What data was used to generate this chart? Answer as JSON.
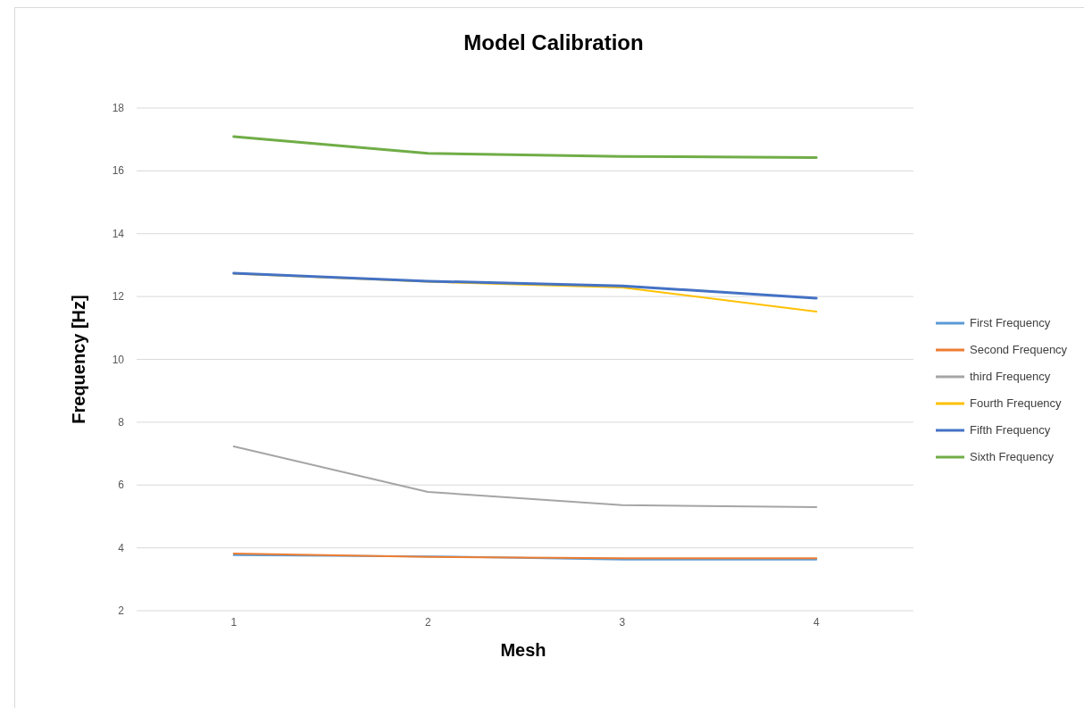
{
  "chart_data": {
    "type": "line",
    "title": "Model Calibration",
    "xlabel": "Mesh",
    "ylabel": "Frequency [Hz]",
    "categories": [
      "1",
      "2",
      "3",
      "4"
    ],
    "series": [
      {
        "name": "First Frequency",
        "color": "#5b9bd5",
        "values": [
          3.77,
          3.73,
          3.63,
          3.63
        ]
      },
      {
        "name": "Second Frequency",
        "color": "#ed7d31",
        "values": [
          3.82,
          3.71,
          3.67,
          3.67
        ]
      },
      {
        "name": "third Frequency",
        "color": "#a5a5a5",
        "values": [
          7.23,
          5.78,
          5.36,
          5.3
        ]
      },
      {
        "name": "Fourth Frequency",
        "color": "#ffc000",
        "values": [
          12.73,
          12.47,
          12.29,
          11.52
        ]
      },
      {
        "name": "Fifth Frequency",
        "color": "#4472c4",
        "values": [
          12.74,
          12.49,
          12.34,
          11.95
        ]
      },
      {
        "name": "Sixth Frequency",
        "color": "#70ad47",
        "values": [
          17.09,
          16.56,
          16.46,
          16.42
        ]
      }
    ],
    "ylim": [
      2,
      18
    ],
    "yticks": [
      2,
      4,
      6,
      8,
      10,
      12,
      14,
      16,
      18
    ],
    "grid": "y",
    "legend": "right",
    "marker": "none",
    "line_style": "solid"
  }
}
